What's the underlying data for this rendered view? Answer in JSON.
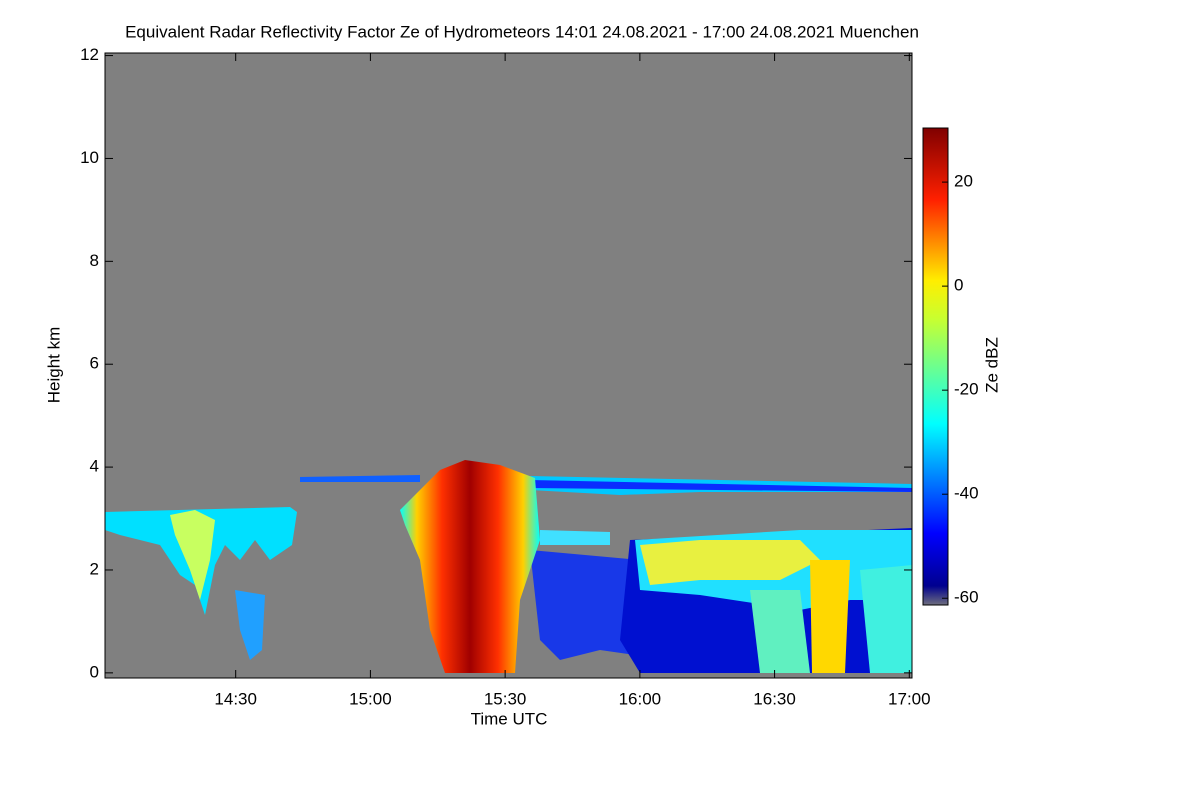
{
  "chart_data": {
    "type": "heatmap",
    "title": "Equivalent Radar Reflectivity Factor Ze of Hydrometeors   14:01 24.08.2021 - 17:00 24.08.2021 Muenchen",
    "xlabel": "Time UTC",
    "ylabel": "Height km",
    "xlim": [
      0.9,
      180.6
    ],
    "xticks": [
      {
        "value": 30,
        "label": "14:30"
      },
      {
        "value": 60,
        "label": "15:00"
      },
      {
        "value": 90,
        "label": "15:30"
      },
      {
        "value": 120,
        "label": "16:00"
      },
      {
        "value": 150,
        "label": "16:30"
      },
      {
        "value": 180,
        "label": "17:00"
      }
    ],
    "ylim": [
      -0.1,
      12.05
    ],
    "yticks": [
      0,
      2,
      4,
      6,
      8,
      10,
      12
    ],
    "colorbar": {
      "label": "Ze dBZ",
      "lim": [
        -61.3,
        30.4
      ],
      "ticks": [
        -60,
        -40,
        -20,
        0,
        20
      ]
    }
  }
}
